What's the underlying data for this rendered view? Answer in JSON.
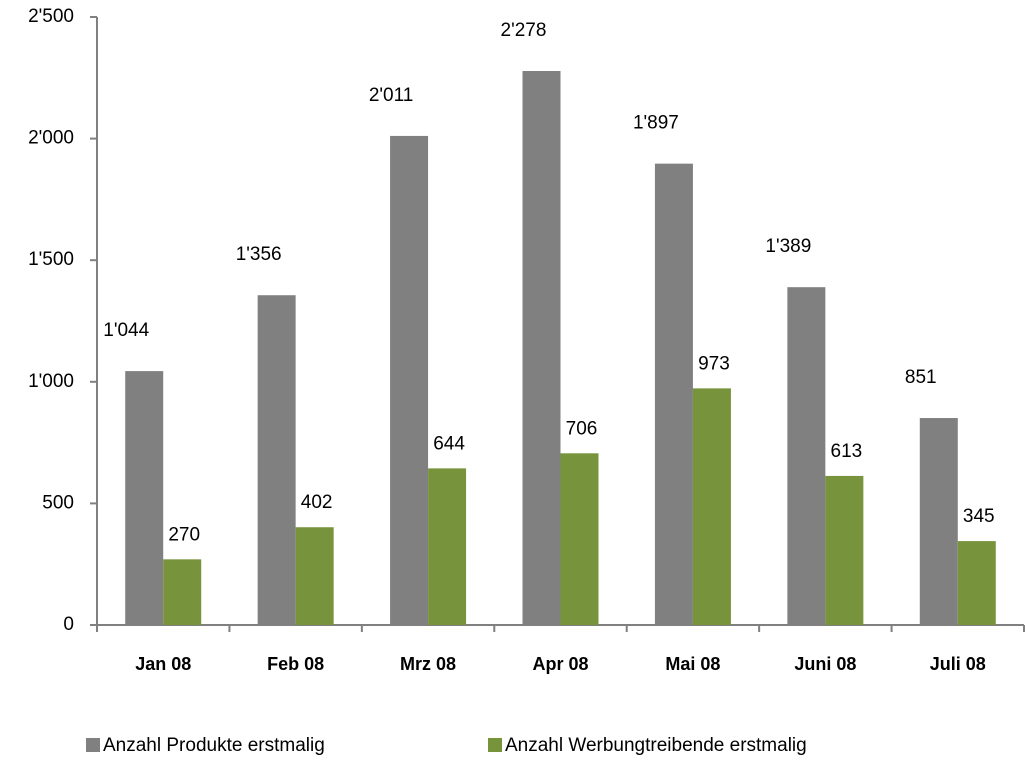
{
  "chart_data": {
    "type": "bar",
    "categories": [
      "Jan 08",
      "Feb 08",
      "Mrz 08",
      "Apr 08",
      "Mai 08",
      "Juni 08",
      "Juli 08"
    ],
    "series": [
      {
        "name": "Anzahl Produkte erstmalig",
        "color": "#808080",
        "values": [
          1044,
          1356,
          2011,
          2278,
          1897,
          1389,
          851
        ],
        "value_labels": [
          "1'044",
          "1'356",
          "2'011",
          "2'278",
          "1'897",
          "1'389",
          "851"
        ]
      },
      {
        "name": "Anzahl Werbungtreibende erstmalig",
        "color": "#77933c",
        "values": [
          270,
          402,
          644,
          706,
          973,
          613,
          345
        ],
        "value_labels": [
          "270",
          "402",
          "644",
          "706",
          "973",
          "613",
          "345"
        ]
      }
    ],
    "ylim": [
      0,
      2500
    ],
    "yticks": [
      0,
      500,
      {
        "value": 1000,
        "label": "1'000"
      },
      {
        "value": 1500,
        "label": "1'500"
      },
      {
        "value": 2000,
        "label": "2'000"
      },
      {
        "value": 2500,
        "label": "2'500"
      }
    ],
    "legend": "bottom"
  }
}
